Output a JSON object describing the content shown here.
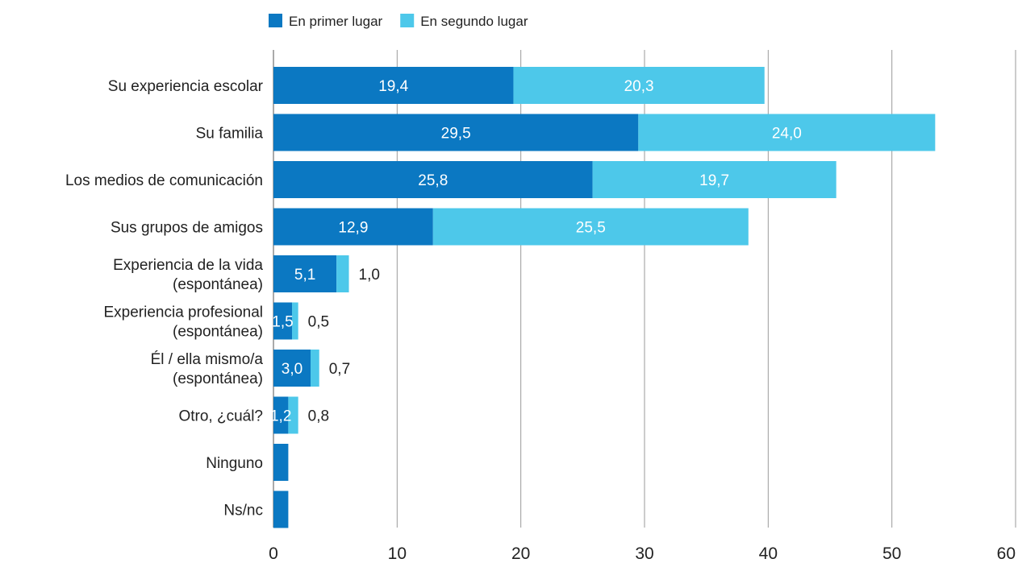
{
  "chart_data": {
    "type": "bar",
    "orientation": "horizontal",
    "stacked": true,
    "categories": [
      [
        "Su experiencia escolar"
      ],
      [
        "Su familia"
      ],
      [
        "Los medios de comunicación"
      ],
      [
        "Sus grupos de amigos"
      ],
      [
        "Experiencia de la vida",
        "(espontánea)"
      ],
      [
        "Experiencia profesional",
        "(espontánea)"
      ],
      [
        "Él / ella mismo/a",
        "(espontánea)"
      ],
      [
        "Otro, ¿cuál?"
      ],
      [
        "Ninguno"
      ],
      [
        "Ns/nc"
      ]
    ],
    "series": [
      {
        "name": "En primer lugar",
        "color": "#0b78c2",
        "values": [
          19.4,
          29.5,
          25.8,
          12.9,
          5.1,
          1.5,
          3.0,
          1.2,
          1.2,
          1.2
        ],
        "labels": [
          "19,4",
          "29,5",
          "25,8",
          "12,9",
          "5,1",
          "1,5",
          "3,0",
          "1,2",
          "",
          ""
        ]
      },
      {
        "name": "En segundo lugar",
        "color": "#4dc8ea",
        "values": [
          20.3,
          24.0,
          19.7,
          25.5,
          1.0,
          0.5,
          0.7,
          0.8,
          0,
          0
        ],
        "labels": [
          "20,3",
          "24,0",
          "19,7",
          "25,5",
          "1,0",
          "0,5",
          "0,7",
          "0,8",
          "",
          ""
        ]
      }
    ],
    "xlim": [
      0,
      60
    ],
    "xticks": [
      "0",
      "10",
      "20",
      "30",
      "40",
      "50",
      "60"
    ],
    "grid": true,
    "legend": "top"
  }
}
